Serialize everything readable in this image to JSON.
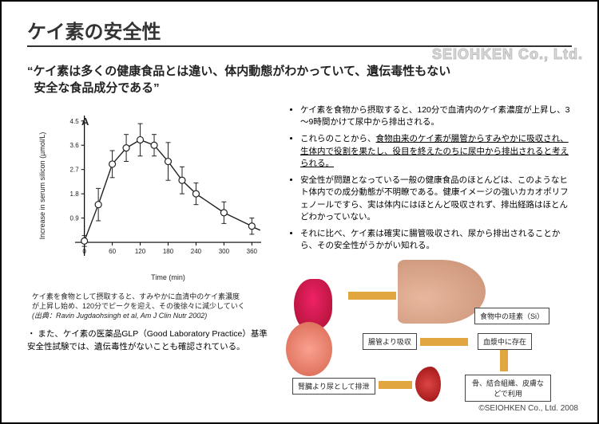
{
  "title": "ケイ素の安全性",
  "watermark": "SEIOHKEN Co., Ltd.",
  "subhead_l1": "“ケイ素は多くの健康食品とは違い、体内動態がわかっていて、遺伝毒性もない",
  "subhead_l2": "  安全な食品成分である”",
  "chart": {
    "type": "line-scatter-errorbar",
    "label": "A",
    "xlabel": "Time (min)",
    "ylabel": "Increase in serum silicon (µmol/L)",
    "xlim": [
      -20,
      380
    ],
    "ylim": [
      -0.5,
      4.7
    ],
    "xticks": [
      0,
      60,
      120,
      180,
      240,
      300,
      360
    ],
    "yticks": [
      0,
      0.9,
      1.8,
      2.7,
      3.6,
      4.5
    ],
    "ytick_labels": [
      "",
      "0.9",
      "1.8",
      "2.7",
      "3.6",
      "4.5"
    ],
    "points_x": [
      0,
      30,
      60,
      90,
      120,
      150,
      180,
      210,
      240,
      300,
      360
    ],
    "points_y": [
      0.05,
      1.4,
      2.9,
      3.5,
      3.8,
      3.6,
      3.0,
      2.3,
      1.8,
      1.1,
      0.6
    ],
    "err": [
      0.2,
      0.6,
      0.5,
      0.5,
      0.6,
      0.4,
      0.7,
      0.5,
      0.4,
      0.4,
      0.3
    ],
    "line_color": "#222222",
    "marker": "o",
    "marker_size": 4,
    "bg": "#ffffff",
    "axis_color": "#000000",
    "font_size_label": 9,
    "font_size_tick": 8
  },
  "caption": {
    "l1": "ケイ素を食物として摂取すると、すみやかに血清中のケイ素濃度",
    "l2": "が上昇し始め、120分でピークを迎え、その後徐々に減少していく",
    "ref": "(出典：Ravin Jugdaohsingh et al, Am J Clin Nutr 2002)"
  },
  "note": "・ また、ケイ素の医薬品GLP（Good Laboratory Practice）基準安全性試験では、遺伝毒性がないことも確認されている。",
  "bullets": [
    {
      "p": "",
      "u": "",
      "t": "ケイ素を食物から摂取すると、120分で血清内のケイ素濃度が上昇し、3～9時間かけて尿中から排出される。"
    },
    {
      "p": "これらのことから、",
      "u": "食物由来のケイ素が腸管からすみやかに吸収され、生体内で役割を果たし、役目を終えたのちに尿中から排出されると考えられる。",
      "t": ""
    },
    {
      "p": "",
      "u": "",
      "t": "安全性が問題となっている一般の健康食品のほとんどは、このようなヒト体内での成分動態が不明瞭である。健康イメージの強いカカオポリフェノールですら、実は体内にはほとんど吸収されず、排出経路はほとんどわかっていない。"
    },
    {
      "p": "",
      "u": "",
      "t": "それに比べ、ケイ素は確実に腸管吸収され、尿から排出されることから、その安全性がうかがい知れる。"
    }
  ],
  "diagram": {
    "box1": "食物中の珪素（Si）",
    "box2": "腸管より吸収",
    "box3": "血漿中に存在",
    "box4": "腎臓より尿として排泄",
    "box5": "骨、結合組織、皮膚などで利用",
    "arrow_color": "#e2a640",
    "box_border": "#444444"
  },
  "footer": "©SEIOHKEN Co., Ltd. 2008"
}
